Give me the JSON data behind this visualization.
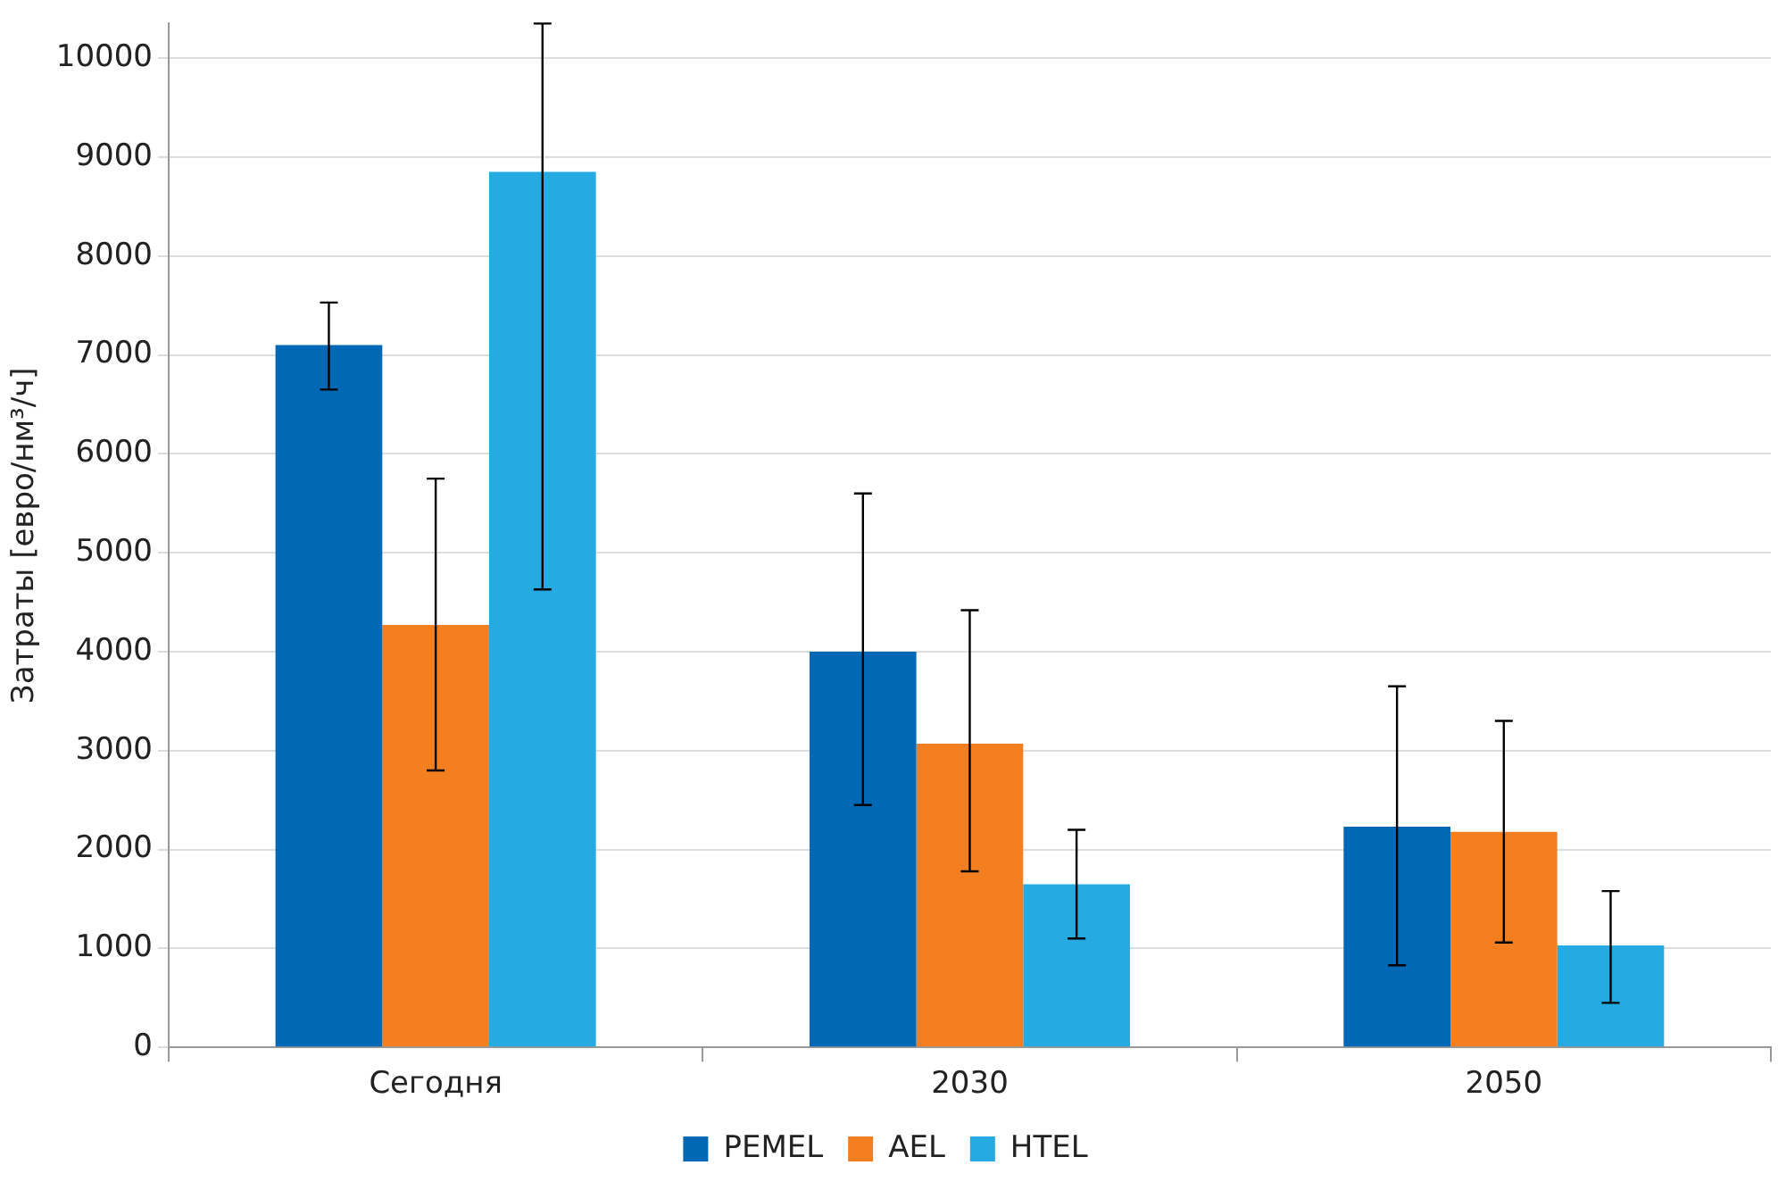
{
  "chart_data": {
    "type": "bar",
    "ylabel": "Затраты [евро/нм³/ч]",
    "categories": [
      "Сегодня",
      "2030",
      "2050"
    ],
    "series": [
      {
        "name": "PEMEL",
        "color": "#0068b4",
        "values": [
          7100,
          4000,
          2230
        ],
        "errors": [
          [
            6650,
            7530
          ],
          [
            2450,
            5600
          ],
          [
            830,
            3650
          ]
        ]
      },
      {
        "name": "AEL",
        "color": "#f47f20",
        "values": [
          4270,
          3070,
          2180
        ],
        "errors": [
          [
            2800,
            5750
          ],
          [
            1780,
            4420
          ],
          [
            1060,
            3300
          ]
        ]
      },
      {
        "name": "HTEL",
        "color": "#25aae1",
        "values": [
          8850,
          1650,
          1030
        ],
        "errors": [
          [
            4630,
            10350
          ],
          [
            1100,
            2200
          ],
          [
            450,
            1580
          ]
        ]
      }
    ],
    "ylim": [
      0,
      10350
    ],
    "yticks": [
      0,
      1000,
      2000,
      3000,
      4000,
      5000,
      6000,
      7000,
      8000,
      9000,
      10000
    ],
    "grid": "y",
    "legend": "bottom"
  }
}
